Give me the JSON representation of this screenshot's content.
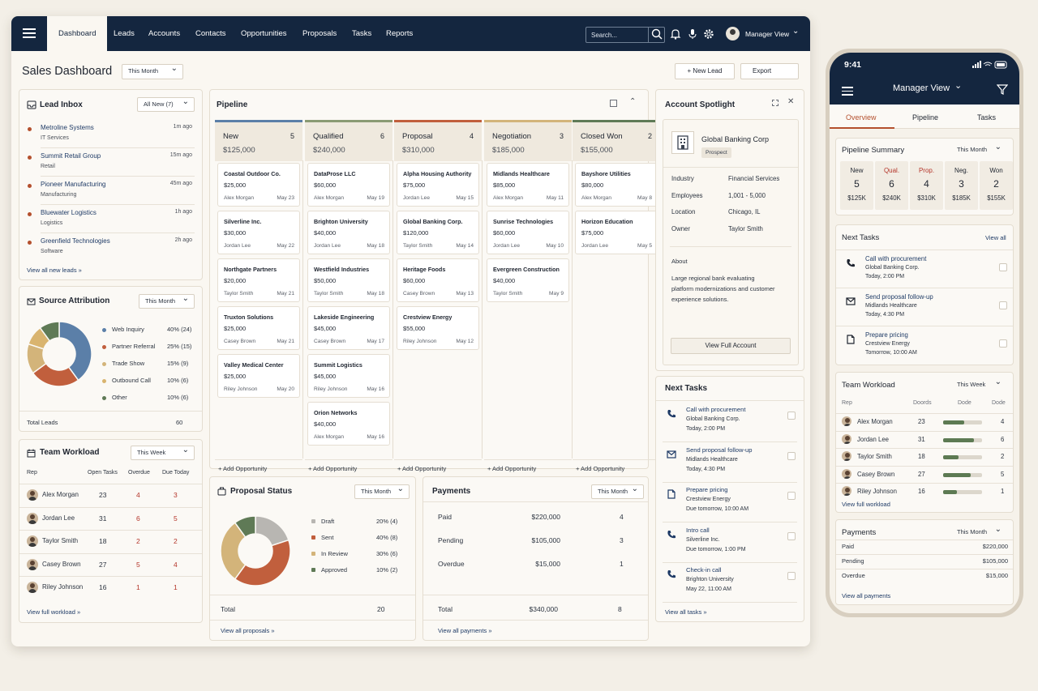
{
  "nav": {
    "tabs": [
      "Dashboard",
      "Leads",
      "Accounts",
      "Contacts",
      "Opportunities",
      "Proposals",
      "Tasks",
      "Reports"
    ],
    "search_placeholder": "Search...",
    "user": "Manager View"
  },
  "header": {
    "title": "Sales Dashboard",
    "range": "This Month",
    "new_lead": "+ New Lead",
    "export": "Export"
  },
  "lead_inbox": {
    "title": "Lead Inbox",
    "filter": "All New (7)",
    "items": [
      {
        "name": "Metroline Systems",
        "type": "IT Services",
        "time": "1m ago"
      },
      {
        "name": "Summit Retail Group",
        "type": "Retail",
        "time": "15m ago"
      },
      {
        "name": "Pioneer Manufacturing",
        "type": "Manufacturing",
        "time": "45m ago"
      },
      {
        "name": "Bluewater Logistics",
        "type": "Logistics",
        "time": "1h ago"
      },
      {
        "name": "Greenfield Technologies",
        "type": "Software",
        "time": "2h ago"
      }
    ],
    "link": "View all new leads »"
  },
  "source": {
    "title": "Source Attribution",
    "range": "This Month",
    "items": [
      {
        "label": "Web Inquiry",
        "pct": "40% (24)",
        "color": "#5b7fa8",
        "value": 40
      },
      {
        "label": "Partner Referral",
        "pct": "25% (15)",
        "color": "#c15f3d",
        "value": 25
      },
      {
        "label": "Trade Show",
        "pct": "15% (9)",
        "color": "#d3b47a",
        "value": 15
      },
      {
        "label": "Outbound Call",
        "pct": "10% (6)",
        "color": "#d9b46f",
        "value": 10
      },
      {
        "label": "Other",
        "pct": "10% (6)",
        "color": "#5f7a56",
        "value": 10
      }
    ],
    "total_label": "Total Leads",
    "total": "60"
  },
  "workload": {
    "title": "Team Workload",
    "range": "This Week",
    "headers": [
      "Rep",
      "Open Tasks",
      "Overdue",
      "Due Today"
    ],
    "rows": [
      {
        "rep": "Alex Morgan",
        "open": "23",
        "overdue": "4",
        "due": "3"
      },
      {
        "rep": "Jordan Lee",
        "open": "31",
        "overdue": "6",
        "due": "5"
      },
      {
        "rep": "Taylor Smith",
        "open": "18",
        "overdue": "2",
        "due": "2"
      },
      {
        "rep": "Casey Brown",
        "open": "27",
        "overdue": "5",
        "due": "4"
      },
      {
        "rep": "Riley Johnson",
        "open": "16",
        "overdue": "1",
        "due": "1"
      }
    ],
    "link": "View full workload »"
  },
  "pipeline": {
    "title": "Pipeline",
    "add": "+ Add Opportunity",
    "columns": [
      {
        "name": "New",
        "count": "5",
        "total": "$125,000",
        "color": "#5b7fa8",
        "cards": [
          {
            "n": "Coastal Outdoor Co.",
            "v": "$25,000",
            "o": "Alex Morgan",
            "d": "May 23"
          },
          {
            "n": "Silverline Inc.",
            "v": "$30,000",
            "o": "Jordan Lee",
            "d": "May 22"
          },
          {
            "n": "Northgate Partners",
            "v": "$20,000",
            "o": "Taylor Smith",
            "d": "May 21"
          },
          {
            "n": "Truxton Solutions",
            "v": "$25,000",
            "o": "Casey Brown",
            "d": "May 21"
          },
          {
            "n": "Valley Medical Center",
            "v": "$25,000",
            "o": "Riley Johnson",
            "d": "May 20"
          }
        ]
      },
      {
        "name": "Qualified",
        "count": "6",
        "total": "$240,000",
        "color": "#8a9a74",
        "cards": [
          {
            "n": "DataProse LLC",
            "v": "$60,000",
            "o": "Alex Morgan",
            "d": "May 19"
          },
          {
            "n": "Brighton University",
            "v": "$40,000",
            "o": "Jordan Lee",
            "d": "May 18"
          },
          {
            "n": "Westfield Industries",
            "v": "$50,000",
            "o": "Taylor Smith",
            "d": "May 18"
          },
          {
            "n": "Lakeside Engineering",
            "v": "$45,000",
            "o": "Casey Brown",
            "d": "May 17"
          },
          {
            "n": "Summit Logistics",
            "v": "$45,000",
            "o": "Riley Johnson",
            "d": "May 16"
          },
          {
            "n": "Orion Networks",
            "v": "$40,000",
            "o": "Alex Morgan",
            "d": "May 16"
          }
        ]
      },
      {
        "name": "Proposal",
        "count": "4",
        "total": "$310,000",
        "color": "#c15f3d",
        "cards": [
          {
            "n": "Alpha Housing Authority",
            "v": "$75,000",
            "o": "Jordan Lee",
            "d": "May 15"
          },
          {
            "n": "Global Banking Corp.",
            "v": "$120,000",
            "o": "Taylor Smith",
            "d": "May 14"
          },
          {
            "n": "Heritage Foods",
            "v": "$60,000",
            "o": "Casey Brown",
            "d": "May 13"
          },
          {
            "n": "Crestview Energy",
            "v": "$55,000",
            "o": "Riley Johnson",
            "d": "May 12"
          }
        ]
      },
      {
        "name": "Negotiation",
        "count": "3",
        "total": "$185,000",
        "color": "#d3b47a",
        "cards": [
          {
            "n": "Midlands Healthcare",
            "v": "$85,000",
            "o": "Alex Morgan",
            "d": "May 11"
          },
          {
            "n": "Sunrise Technologies",
            "v": "$60,000",
            "o": "Jordan Lee",
            "d": "May 10"
          },
          {
            "n": "Evergreen Construction",
            "v": "$40,000",
            "o": "Taylor Smith",
            "d": "May 9"
          }
        ]
      },
      {
        "name": "Closed Won",
        "count": "2",
        "total": "$155,000",
        "color": "#5f7a56",
        "cards": [
          {
            "n": "Bayshore Utilities",
            "v": "$80,000",
            "o": "Alex Morgan",
            "d": "May 8"
          },
          {
            "n": "Horizon Education",
            "v": "$75,000",
            "o": "Jordan Lee",
            "d": "May 5"
          }
        ]
      }
    ]
  },
  "spotlight": {
    "title": "Account Spotlight",
    "name": "Global Banking Corp",
    "badge": "Prospect",
    "fields": [
      {
        "k": "Industry",
        "v": "Financial Services"
      },
      {
        "k": "Employees",
        "v": "1,001 - 5,000"
      },
      {
        "k": "Location",
        "v": "Chicago, IL"
      },
      {
        "k": "Owner",
        "v": "Taylor Smith"
      }
    ],
    "about_label": "About",
    "about": "Large regional bank evaluating platform modernizations and customer experience solutions.",
    "button": "View Full Account"
  },
  "tasks": {
    "title": "Next Tasks",
    "items": [
      {
        "t": "Call with procurement",
        "a": "Global Banking Corp.",
        "d": "Today, 2:00 PM",
        "icon": "phone-icon"
      },
      {
        "t": "Send proposal follow-up",
        "a": "Midlands Healthcare",
        "d": "Today, 4:30 PM",
        "icon": "mail-icon"
      },
      {
        "t": "Prepare pricing",
        "a": "Crestview Energy",
        "d": "Due tomorrow, 10:00 AM",
        "icon": "document-icon"
      },
      {
        "t": "Intro call",
        "a": "Silverline Inc.",
        "d": "Due tomorrow, 1:00 PM",
        "icon": "phone-icon"
      },
      {
        "t": "Check-in call",
        "a": "Brighton University",
        "d": "May 22, 11:00 AM",
        "icon": "phone-icon"
      }
    ],
    "link": "View all tasks »"
  },
  "proposal_status": {
    "title": "Proposal Status",
    "range": "This Month",
    "items": [
      {
        "label": "Draft",
        "pct": "20% (4)",
        "color": "#b8b6b2",
        "value": 20
      },
      {
        "label": "Sent",
        "pct": "40% (8)",
        "color": "#c15f3d",
        "value": 40
      },
      {
        "label": "In Review",
        "pct": "30% (6)",
        "color": "#d3b47a",
        "value": 30
      },
      {
        "label": "Approved",
        "pct": "10% (2)",
        "color": "#5f7a56",
        "value": 10
      }
    ],
    "total_label": "Total",
    "total": "20",
    "link": "View all proposals »"
  },
  "payments": {
    "title": "Payments",
    "range": "This Month",
    "rows": [
      {
        "k": "Paid",
        "v": "$220,000",
        "c": "4"
      },
      {
        "k": "Pending",
        "v": "$105,000",
        "c": "3"
      },
      {
        "k": "Overdue",
        "v": "$15,000",
        "c": "1"
      }
    ],
    "total_label": "Total",
    "total": "$340,000",
    "total_count": "8",
    "link": "View all payments »"
  },
  "mobile": {
    "time": "9:41",
    "title": "Manager View",
    "tabs": [
      "Overview",
      "Pipeline",
      "Tasks"
    ],
    "summary": {
      "title": "Pipeline Summary",
      "range": "This Month",
      "cols": [
        {
          "h": "New",
          "n": "5",
          "v": "$125K"
        },
        {
          "h": "Qual.",
          "n": "6",
          "v": "$240K"
        },
        {
          "h": "Prop.",
          "n": "4",
          "v": "$310K"
        },
        {
          "h": "Neg.",
          "n": "3",
          "v": "$185K"
        },
        {
          "h": "Won",
          "n": "2",
          "v": "$155K"
        }
      ]
    },
    "tasks": {
      "title": "Next Tasks",
      "link": "View all",
      "items": [
        {
          "t": "Call with procurement",
          "a": "Global Banking Corp.",
          "d": "Today, 2:00 PM"
        },
        {
          "t": "Send proposal follow-up",
          "a": "Midlands Healthcare",
          "d": "Today, 4:30 PM"
        },
        {
          "t": "Prepare pricing",
          "a": "Crestview Energy",
          "d": "Tomorrow, 10:00 AM"
        }
      ]
    },
    "workload": {
      "title": "Team Workload",
      "range": "This Week",
      "headers": [
        "Rep",
        "Doords",
        "Dode",
        "Dode"
      ],
      "rows": [
        {
          "rep": "Alex Morgan",
          "n": "23",
          "p": 0.55,
          "d": "4"
        },
        {
          "rep": "Jordan Lee",
          "n": "31",
          "p": 0.8,
          "d": "6"
        },
        {
          "rep": "Taylor Smith",
          "n": "18",
          "p": 0.4,
          "d": "2"
        },
        {
          "rep": "Casey Brown",
          "n": "27",
          "p": 0.7,
          "d": "5"
        },
        {
          "rep": "Riley Johnson",
          "n": "16",
          "p": 0.35,
          "d": "1"
        }
      ],
      "link": "View full workload"
    },
    "payments": {
      "title": "Payments",
      "range": "This Month",
      "rows": [
        {
          "k": "Paid",
          "v": "$220,000"
        },
        {
          "k": "Pending",
          "v": "$105,000"
        },
        {
          "k": "Overdue",
          "v": "$15,000"
        }
      ],
      "link": "View all payments"
    }
  }
}
